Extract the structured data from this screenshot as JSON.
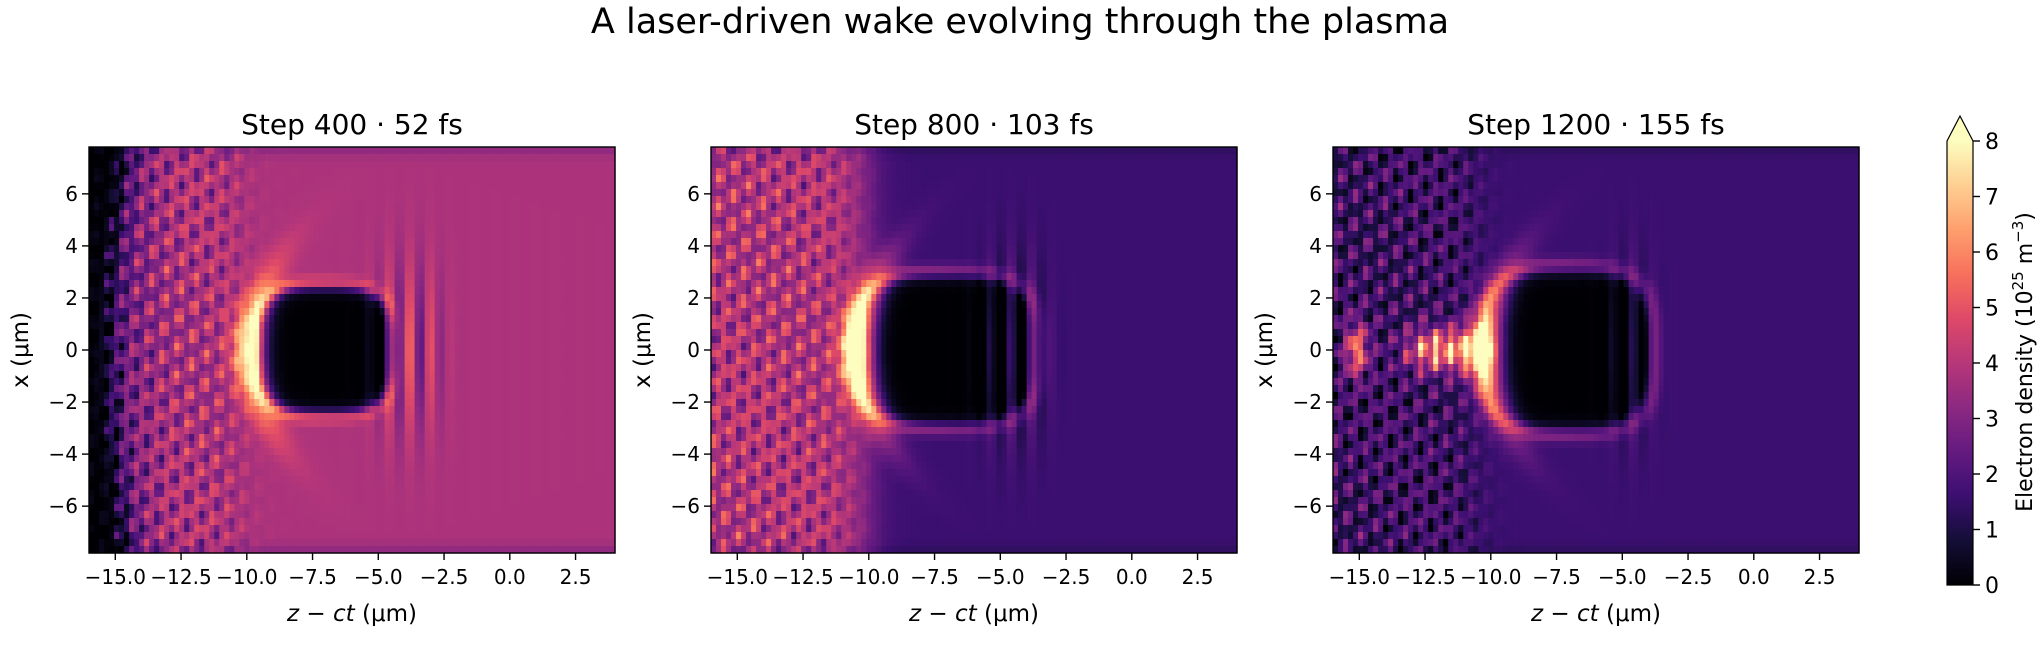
{
  "figure": {
    "title": "A laser-driven wake evolving through the plasma"
  },
  "colormap": {
    "name": "magma",
    "stops": [
      "#000004",
      "#140e36",
      "#3b0f70",
      "#641a80",
      "#8c2981",
      "#b73779",
      "#de4968",
      "#f7705c",
      "#fe9f6d",
      "#fecf92",
      "#fcfdbf"
    ]
  },
  "chart_data": [
    {
      "type": "heatmap",
      "title": "Step 400 · 52 fs",
      "xlabel_italic": "z − ct",
      "xlabel_unit": " (μm)",
      "ylabel": "x (μm)",
      "xlim": [
        -16,
        4
      ],
      "ylim": [
        -7.8,
        7.8
      ],
      "xticks": [
        -15.0,
        -12.5,
        -10.0,
        -7.5,
        -5.0,
        -2.5,
        0.0,
        2.5
      ],
      "xtick_labels": [
        "−15.0",
        "−12.5",
        "−10.0",
        "−7.5",
        "−5.0",
        "−2.5",
        "0.0",
        "2.5"
      ],
      "yticks": [
        -6,
        -4,
        -2,
        0,
        2,
        4,
        6
      ],
      "ytick_labels": [
        "−6",
        "−4",
        "−2",
        "0",
        "2",
        "4",
        "6"
      ],
      "background_density": 3.8,
      "features": {
        "vacuum_edge_z": -15.0,
        "front_z": -13.5,
        "bubble_center_z": -7.0,
        "bubble_half_length": 2.5,
        "bubble_radius": 2.4,
        "spike_z": -9.9,
        "spike_peak": 8,
        "laser_start_z": -5.0,
        "laser_end_z": -2.8,
        "tail_density": 3.0,
        "channel_peak": 0
      }
    },
    {
      "type": "heatmap",
      "title": "Step 800 · 103 fs",
      "xlabel_italic": "z − ct",
      "xlabel_unit": " (μm)",
      "ylabel": "x (μm)",
      "xlim": [
        -16,
        4
      ],
      "ylim": [
        -7.8,
        7.8
      ],
      "xticks": [
        -15.0,
        -12.5,
        -10.0,
        -7.5,
        -5.0,
        -2.5,
        0.0,
        2.5
      ],
      "xtick_labels": [
        "−15.0",
        "−12.5",
        "−10.0",
        "−7.5",
        "−5.0",
        "−2.5",
        "0.0",
        "2.5"
      ],
      "yticks": [
        -6,
        -4,
        -2,
        0,
        2,
        4,
        6
      ],
      "ytick_labels": [
        "−6",
        "−4",
        "−2",
        "0",
        "2",
        "4",
        "6"
      ],
      "background_density": 1.6,
      "features": {
        "vacuum_edge_z": -99,
        "front_z": -10.0,
        "bubble_center_z": -7.0,
        "bubble_half_length": 3.2,
        "bubble_radius": 2.8,
        "spike_z": -10.4,
        "spike_peak": 8,
        "laser_start_z": -5.5,
        "laser_end_z": -3.5,
        "tail_density": 3.9,
        "channel_peak": 0
      }
    },
    {
      "type": "heatmap",
      "title": "Step 1200 · 155 fs",
      "xlabel_italic": "z − ct",
      "xlabel_unit": " (μm)",
      "ylabel": "x (μm)",
      "xlim": [
        -16,
        4
      ],
      "ylim": [
        -7.8,
        7.8
      ],
      "xticks": [
        -15.0,
        -12.5,
        -10.0,
        -7.5,
        -5.0,
        -2.5,
        0.0,
        2.5
      ],
      "xtick_labels": [
        "−15.0",
        "−12.5",
        "−10.0",
        "−7.5",
        "−5.0",
        "−2.5",
        "0.0",
        "2.5"
      ],
      "yticks": [
        -6,
        -4,
        -2,
        0,
        2,
        4,
        6
      ],
      "ytick_labels": [
        "−6",
        "−4",
        "−2",
        "0",
        "2",
        "4",
        "6"
      ],
      "background_density": 1.6,
      "features": {
        "vacuum_edge_z": -99,
        "front_z": -99,
        "bubble_center_z": -7.0,
        "bubble_half_length": 3.0,
        "bubble_radius": 3.0,
        "spike_z": -10.2,
        "spike_peak": 7,
        "laser_start_z": -5.2,
        "laser_end_z": -4.2,
        "tail_density": 1.8,
        "channel_peak": 6.5
      }
    }
  ],
  "colorbar": {
    "label": "Electron density (10",
    "label_sup1": "25",
    "label_mid": " m",
    "label_sup2": "−3",
    "label_end": ")",
    "vmin": 0,
    "vmax": 8,
    "extend": "max",
    "ticks": [
      0,
      1,
      2,
      3,
      4,
      5,
      6,
      7,
      8
    ],
    "tick_labels": [
      "0",
      "1",
      "2",
      "3",
      "4",
      "5",
      "6",
      "7",
      "8"
    ]
  }
}
